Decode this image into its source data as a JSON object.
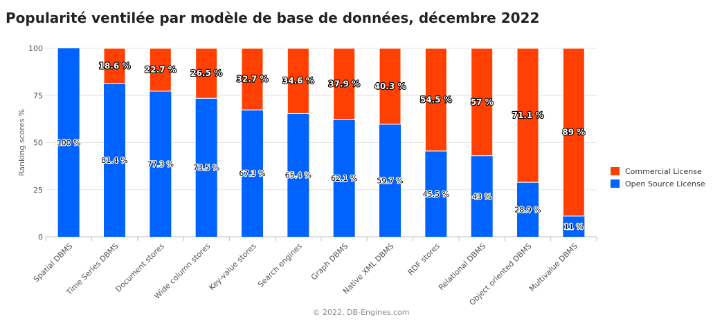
{
  "title": "Popularité ventilée par modèle de base de données, décembre 2022",
  "credit": "© 2022, DB-Engines.com",
  "colors": {
    "commercial": "#ff4000",
    "open_source": "#0062ff"
  },
  "chart_data": {
    "type": "bar",
    "stacked": true,
    "title": "Popularité ventilée par modèle de base de données, décembre 2022",
    "ylabel": "Ranking scores %",
    "xlabel": "",
    "ylim": [
      0,
      100
    ],
    "yticks": [
      0,
      25,
      50,
      75,
      100
    ],
    "grid": true,
    "legend_position": "right",
    "value_suffix": " %",
    "categories": [
      "Spatial DBMS",
      "Time Series DBMS",
      "Document stores",
      "Wide column stores",
      "Key-value stores",
      "Search engines",
      "Graph DBMS",
      "Native XML DBMS",
      "RDF stores",
      "Relational DBMS",
      "Object oriented DBMS",
      "Multivalue DBMS"
    ],
    "series": [
      {
        "name": "Open Source License",
        "color": "#0062ff",
        "values": [
          100,
          81.4,
          77.3,
          73.5,
          67.3,
          65.4,
          62.1,
          59.7,
          45.5,
          43,
          28.9,
          11
        ]
      },
      {
        "name": "Commercial License",
        "color": "#ff4000",
        "values": [
          0,
          18.6,
          22.7,
          26.5,
          32.7,
          34.6,
          37.9,
          40.3,
          54.5,
          57,
          71.1,
          89
        ]
      }
    ],
    "data_labels": {
      "open_source": [
        "100 %",
        "81.4 %",
        "77.3 %",
        "73.5 %",
        "67.3 %",
        "65.4 %",
        "62.1 %",
        "59.7 %",
        "45.5 %",
        "43 %",
        "28.9 %",
        "11 %"
      ],
      "commercial": [
        "",
        "18.6 %",
        "22.7 %",
        "26.5 %",
        "32.7 %",
        "34.6 %",
        "37.9 %",
        "40.3 %",
        "54.5 %",
        "57 %",
        "71.1 %",
        "89 %"
      ]
    }
  },
  "legend": [
    {
      "label": "Commercial License",
      "color": "#ff4000"
    },
    {
      "label": "Open Source License",
      "color": "#0062ff"
    }
  ]
}
